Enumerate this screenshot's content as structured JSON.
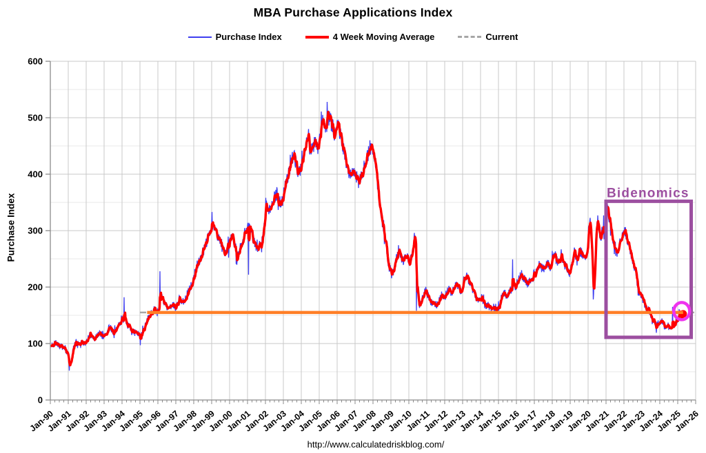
{
  "title": "MBA Purchase Applications Index",
  "legend": {
    "items": [
      {
        "label": "Purchase Index",
        "color": "#3d3df0",
        "style": "line"
      },
      {
        "label": "4 Week Moving Average",
        "color": "#ff0000",
        "style": "thick-line"
      },
      {
        "label": "Current",
        "color": "#a6a6a6",
        "style": "dashed"
      }
    ]
  },
  "footer": {
    "url": "http://www.calculatedriskblog.com/"
  },
  "chart_data": {
    "type": "line",
    "title": "MBA Purchase Applications Index",
    "ylabel": "Purchase Index",
    "xlabel": "",
    "ylim": [
      0,
      600
    ],
    "y_ticks": [
      0,
      100,
      200,
      300,
      400,
      500,
      600
    ],
    "y_minor_step": 50,
    "grid": true,
    "x_range_years": [
      1990,
      2026
    ],
    "x_tick_labels": [
      "Jan-90",
      "Jan-91",
      "Jan-92",
      "Jan-93",
      "Jan-94",
      "Jan-95",
      "Jan-96",
      "Jan-97",
      "Jan-98",
      "Jan-99",
      "Jan-00",
      "Jan-01",
      "Jan-02",
      "Jan-03",
      "Jan-04",
      "Jan-05",
      "Jan-06",
      "Jan-07",
      "Jan-08",
      "Jan-09",
      "Jan-10",
      "Jan-11",
      "Jan-12",
      "Jan-13",
      "Jan-14",
      "Jan-15",
      "Jan-16",
      "Jan-17",
      "Jan-18",
      "Jan-19",
      "Jan-20",
      "Jan-21",
      "Jan-22",
      "Jan-23",
      "Jan-24",
      "Jan-25",
      "Jan-26"
    ],
    "series": [
      {
        "name": "Purchase Index",
        "type": "weekly_raw",
        "color": "#3d3df0",
        "width": 1.3
      },
      {
        "name": "4 Week Moving Average",
        "type": "moving_average_of_weekly",
        "color": "#ff0000",
        "width": 3.4
      },
      {
        "name": "Current",
        "type": "hline",
        "value": 155,
        "color": "#a6a6a6",
        "dash": [
          9,
          6
        ],
        "width": 2.5,
        "start_year": 1995.0,
        "end_year": 2026.0
      }
    ],
    "current_level_line": {
      "color": "#ff7f27",
      "value": 155,
      "width": 4.5,
      "start_year": 1995.4,
      "end_year": 2025.3
    },
    "data_end_year": 2025.3,
    "last_value": 155,
    "noise": {
      "seed": 11,
      "amplitude": 9
    },
    "ma_monthly_by_year": {
      "1990": [
        95,
        97,
        100,
        101,
        100,
        98,
        96,
        94,
        92,
        90,
        87,
        82
      ],
      "1991": [
        68,
        64,
        78,
        92,
        100,
        103,
        102,
        100,
        101,
        103,
        101,
        99
      ],
      "1992": [
        104,
        110,
        116,
        114,
        111,
        109,
        111,
        114,
        117,
        119,
        114,
        110
      ],
      "1993": [
        113,
        118,
        124,
        129,
        127,
        124,
        121,
        124,
        127,
        131,
        134,
        139
      ],
      "1994": [
        143,
        146,
        141,
        135,
        130,
        127,
        124,
        121,
        119,
        121,
        119,
        117
      ],
      "1995": [
        114,
        119,
        124,
        131,
        138,
        145,
        150,
        154,
        157,
        160,
        158,
        155
      ],
      "1996": [
        163,
        174,
        183,
        176,
        170,
        167,
        164,
        161,
        164,
        169,
        167,
        163
      ],
      "1997": [
        168,
        173,
        179,
        177,
        174,
        177,
        181,
        187,
        191,
        197,
        204,
        210
      ],
      "1998": [
        222,
        232,
        240,
        246,
        252,
        258,
        264,
        270,
        278,
        288,
        296,
        302
      ],
      "1999": [
        306,
        308,
        302,
        294,
        287,
        280,
        274,
        269,
        265,
        262,
        266,
        273
      ],
      "2000": [
        280,
        290,
        284,
        270,
        258,
        255,
        262,
        272,
        281,
        290,
        298,
        306
      ],
      "2001": [
        310,
        306,
        298,
        288,
        279,
        272,
        268,
        272,
        280,
        270,
        292,
        315
      ],
      "2002": [
        348,
        342,
        336,
        340,
        348,
        355,
        361,
        366,
        359,
        351,
        346,
        353
      ],
      "2003": [
        375,
        382,
        391,
        401,
        411,
        422,
        432,
        428,
        419,
        408,
        400,
        408
      ],
      "2004": [
        418,
        430,
        442,
        454,
        462,
        450,
        440,
        446,
        454,
        460,
        452,
        444
      ],
      "2005": [
        472,
        484,
        492,
        488,
        482,
        494,
        500,
        497,
        489,
        479,
        471,
        479
      ],
      "2006": [
        487,
        479,
        469,
        456,
        442,
        428,
        414,
        404,
        397,
        403,
        409,
        404
      ],
      "2007": [
        399,
        391,
        387,
        393,
        401,
        409,
        417,
        427,
        434,
        440,
        444,
        441
      ],
      "2008": [
        437,
        418,
        392,
        365,
        342,
        326,
        312,
        298,
        283,
        260,
        238,
        226
      ],
      "2009": [
        220,
        228,
        238,
        248,
        256,
        262,
        258,
        252,
        246,
        250,
        255,
        248
      ],
      "2010": [
        245,
        252,
        262,
        281,
        288,
        204,
        172,
        168,
        175,
        182,
        190,
        194
      ],
      "2011": [
        186,
        180,
        175,
        172,
        176,
        170,
        166,
        172,
        178,
        182,
        186,
        182
      ],
      "2012": [
        184,
        190,
        196,
        192,
        188,
        194,
        200,
        206,
        201,
        196,
        190,
        196
      ],
      "2013": [
        210,
        215,
        219,
        215,
        210,
        204,
        197,
        191,
        185,
        179,
        176,
        178
      ],
      "2014": [
        182,
        176,
        170,
        166,
        170,
        166,
        162,
        160,
        163,
        166,
        162,
        158
      ],
      "2015": [
        166,
        176,
        186,
        192,
        188,
        184,
        188,
        192,
        196,
        201,
        205,
        199
      ],
      "2016": [
        209,
        214,
        218,
        222,
        218,
        214,
        210,
        206,
        210,
        214,
        218,
        222
      ],
      "2017": [
        224,
        230,
        236,
        240,
        236,
        232,
        236,
        240,
        244,
        240,
        236,
        240
      ],
      "2018": [
        252,
        256,
        250,
        244,
        248,
        252,
        248,
        244,
        240,
        234,
        226,
        222
      ],
      "2019": [
        232,
        248,
        262,
        258,
        252,
        258,
        263,
        260,
        256,
        252,
        258,
        266
      ],
      "2020": [
        308,
        314,
        268,
        184,
        235,
        305,
        318,
        298,
        288,
        300,
        292,
        312
      ],
      "2021": [
        342,
        336,
        318,
        300,
        284,
        268,
        258,
        260,
        268,
        278,
        290,
        298
      ],
      "2022": [
        300,
        294,
        280,
        270,
        262,
        250,
        238,
        226,
        214,
        200,
        188,
        184
      ],
      "2023": [
        180,
        172,
        163,
        156,
        160,
        152,
        146,
        142,
        136,
        131,
        134,
        138
      ],
      "2024": [
        136,
        140,
        134,
        130,
        134,
        131,
        128,
        131,
        135,
        130,
        136,
        142
      ],
      "2025": [
        146,
        150,
        146,
        150,
        155
      ]
    },
    "blue_spikes": [
      {
        "t": 1991.06,
        "v": 52
      },
      {
        "t": 1994.12,
        "v": 182
      },
      {
        "t": 1995.02,
        "v": 97
      },
      {
        "t": 1996.12,
        "v": 228
      },
      {
        "t": 1999.02,
        "v": 333
      },
      {
        "t": 2001.05,
        "v": 222
      },
      {
        "t": 2004.4,
        "v": 480
      },
      {
        "t": 2005.45,
        "v": 528
      },
      {
        "t": 2007.82,
        "v": 460
      },
      {
        "t": 2010.3,
        "v": 296
      },
      {
        "t": 2010.42,
        "v": 158
      },
      {
        "t": 2015.78,
        "v": 249
      },
      {
        "t": 2020.28,
        "v": 178
      },
      {
        "t": 2020.86,
        "v": 327
      },
      {
        "t": 2021.04,
        "v": 347
      },
      {
        "t": 2023.8,
        "v": 119
      },
      {
        "t": 2024.72,
        "v": 165
      }
    ],
    "annotations": {
      "bidenomics_box": {
        "label": "Bidenomics",
        "color": "#9c4fa0",
        "x_start_year": 2021.0,
        "x_end_year": 2025.75,
        "v_top": 352,
        "v_bottom": 111,
        "stroke_width": 5
      },
      "current_circle": {
        "color": "#ee33ee",
        "radius": 12,
        "stroke_width": 4.5
      }
    }
  }
}
